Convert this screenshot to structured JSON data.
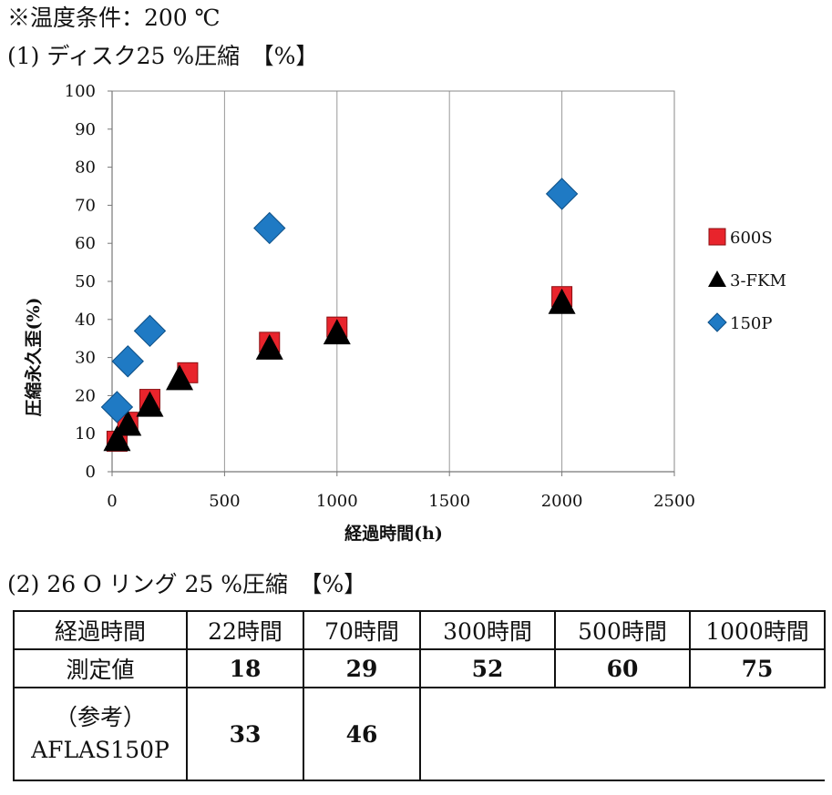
{
  "header": {
    "temp_condition": "※温度条件：200 ℃",
    "section1_title": "(1)  ディスク25 %圧縮　【%】",
    "section2_title": "(2) 26 O リング  25 %圧縮　【%】"
  },
  "chart_data": {
    "type": "scatter",
    "title": "",
    "xlabel": "経過時間(h)",
    "ylabel": "圧縮永久歪(%)",
    "xlim": [
      0,
      2500
    ],
    "ylim": [
      0,
      100
    ],
    "xticks": [
      0,
      500,
      1000,
      1500,
      2000,
      2500
    ],
    "yticks": [
      0,
      10,
      20,
      30,
      40,
      50,
      60,
      70,
      80,
      90,
      100
    ],
    "grid": "vertical",
    "legend_position": "right",
    "series": [
      {
        "name": "600S",
        "marker": "square",
        "color": "#e8242c",
        "points": [
          [
            22,
            8
          ],
          [
            70,
            13
          ],
          [
            168,
            19
          ],
          [
            336,
            26
          ],
          [
            700,
            34
          ],
          [
            1000,
            38
          ],
          [
            2000,
            46
          ]
        ]
      },
      {
        "name": "3-FKM",
        "marker": "triangle",
        "color": "#000000",
        "points": [
          [
            22,
            8
          ],
          [
            70,
            12
          ],
          [
            168,
            17
          ],
          [
            300,
            24
          ],
          [
            700,
            32
          ],
          [
            1000,
            36
          ],
          [
            2000,
            44
          ]
        ]
      },
      {
        "name": "150P",
        "marker": "diamond",
        "color": "#1f7ac4",
        "points": [
          [
            22,
            17
          ],
          [
            70,
            29
          ],
          [
            168,
            37
          ],
          [
            700,
            64
          ],
          [
            2000,
            73
          ]
        ]
      }
    ]
  },
  "table": {
    "header_row": [
      "経過時間",
      "22時間",
      "70時間",
      "300時間",
      "500時間",
      "1000時間"
    ],
    "measured_label": "測定値",
    "measured_values": [
      "18",
      "29",
      "52",
      "60",
      "75"
    ],
    "ref_label_line1": "（参考）",
    "ref_label_line2": "AFLAS150P",
    "ref_values": [
      "33",
      "46"
    ]
  }
}
